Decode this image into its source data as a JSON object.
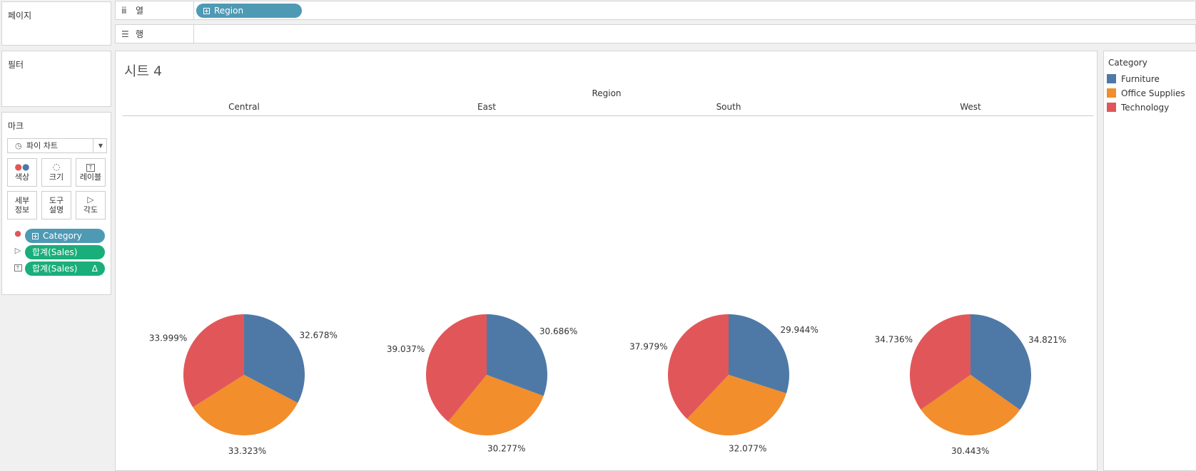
{
  "shelves": {
    "pages_label": "페이지",
    "filters_label": "필터",
    "columns_label": "열",
    "columns_pill": "Region",
    "rows_label": "행"
  },
  "marks": {
    "title": "마크",
    "mark_type": "파이 차트",
    "buttons": {
      "color": "색상",
      "size": "크기",
      "label": "레이블",
      "detail": "세부\n정보",
      "tooltip": "도구\n설명",
      "angle": "각도"
    },
    "fields": [
      {
        "name": "Category",
        "type": "dimension",
        "role": "color"
      },
      {
        "name": "합계(Sales)",
        "type": "measure",
        "role": "angle"
      },
      {
        "name": "합계(Sales)",
        "type": "measure",
        "role": "label",
        "badge": "Δ"
      }
    ]
  },
  "sheet": {
    "title": "시트 4",
    "region_header": "Region"
  },
  "legend": {
    "title": "Category",
    "items": [
      {
        "name": "Furniture",
        "color": "#4e79a7"
      },
      {
        "name": "Office Supplies",
        "color": "#f28e2b"
      },
      {
        "name": "Technology",
        "color": "#e15759"
      }
    ]
  },
  "chart_data": {
    "type": "pie",
    "categories": [
      "Furniture",
      "Office Supplies",
      "Technology"
    ],
    "colors": [
      "#4e79a7",
      "#f28e2b",
      "#e15759"
    ],
    "pies": [
      {
        "region": "Central",
        "values": [
          32.678,
          33.323,
          33.999
        ],
        "labels": [
          "32.678%",
          "33.323%",
          "33.999%"
        ]
      },
      {
        "region": "East",
        "values": [
          30.686,
          30.277,
          39.037
        ],
        "labels": [
          "30.686%",
          "30.277%",
          "39.037%"
        ]
      },
      {
        "region": "South",
        "values": [
          29.944,
          32.077,
          37.979
        ],
        "labels": [
          "29.944%",
          "32.077%",
          "37.979%"
        ]
      },
      {
        "region": "West",
        "values": [
          34.821,
          30.443,
          34.736
        ],
        "labels": [
          "34.821%",
          "30.443%",
          "34.736%"
        ]
      }
    ]
  }
}
